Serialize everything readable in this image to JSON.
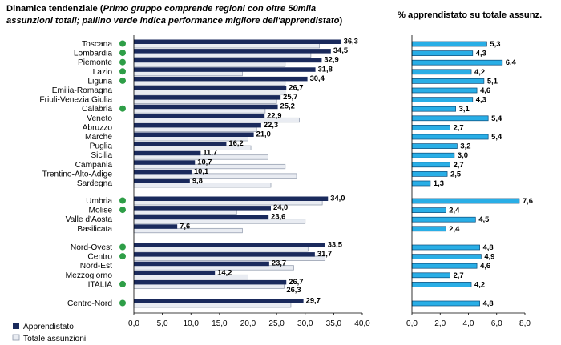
{
  "titles": {
    "left_line1_a": "Dinamica tendenziale (",
    "left_line1_b": "Primo gruppo comprende regioni con oltre 50mila",
    "left_line2_a": "assunzioni totali; pallino verde indica performance migliore dell'apprendistato",
    "left_line2_b": ")",
    "right": "% apprendistato su totale assunz."
  },
  "legend": {
    "apprendistato": "Apprendistato",
    "totale": "Totale assunzioni"
  },
  "colors": {
    "apprendistato": "#1a2a5c",
    "totale": "#e9ecf2",
    "totale_border": "#8c96a8",
    "pct": "#29aee6",
    "pct_border": "#0b4a78",
    "dot": "#2e9e47"
  },
  "chart_data": [
    {
      "type": "bar",
      "orientation": "horizontal",
      "categories": [
        "Toscana",
        "Lombardia",
        "Piemonte",
        "Lazio",
        "Liguria",
        "Emilia-Romagna",
        "Friuli-Venezia Giulia",
        "Calabria",
        "Veneto",
        "Abruzzo",
        "Marche",
        "Puglia",
        "Sicilia",
        "Campania",
        "Trentino-Alto-Adige",
        "Sardegna",
        "Umbria",
        "Molise",
        "Valle d'Aosta",
        "Basilicata",
        "Nord-Ovest",
        "Centro",
        "Nord-Est",
        "Mezzogiorno",
        "ITALIA",
        "Centro-Nord"
      ],
      "groups": [
        [
          0,
          15
        ],
        [
          16,
          19
        ],
        [
          20,
          24
        ],
        [
          25,
          25
        ]
      ],
      "series": [
        {
          "name": "Apprendistato",
          "values": [
            36.3,
            34.5,
            32.9,
            31.8,
            30.4,
            26.7,
            25.7,
            25.2,
            22.9,
            22.3,
            21.0,
            16.2,
            11.7,
            10.7,
            10.1,
            9.8,
            34.0,
            24.0,
            23.6,
            7.6,
            33.5,
            31.7,
            23.7,
            14.2,
            26.7,
            29.7
          ]
        },
        {
          "name": "Totale assunzioni",
          "values": [
            32.5,
            31.0,
            26.5,
            19.0,
            26.5,
            26.5,
            25.0,
            23.0,
            29.0,
            21.5,
            20.0,
            20.5,
            23.5,
            26.5,
            28.5,
            24.0,
            33.0,
            18.0,
            30.0,
            19.0,
            30.5,
            33.5,
            28.0,
            20.0,
            26.3,
            27.5
          ]
        }
      ],
      "value_labels": [
        "36,3",
        "34,5",
        "32,9",
        "31,8",
        "30,4",
        "26,7",
        "25,7",
        "25,2",
        "22,9",
        "22,3",
        "21,0",
        "16,2",
        "11,7",
        "10,7",
        "10,1",
        "9,8",
        "34,0",
        "24,0",
        "23,6",
        "7,6",
        "33,5",
        "31,7",
        "23,7",
        "14,2",
        "26,7",
        "29,7"
      ],
      "extra_labels": [
        {
          "category": "ITALIA",
          "text": "26,3"
        }
      ],
      "green_dot": [
        true,
        true,
        true,
        true,
        true,
        false,
        false,
        true,
        false,
        false,
        false,
        false,
        false,
        false,
        false,
        false,
        true,
        true,
        false,
        false,
        true,
        true,
        false,
        false,
        true,
        true
      ],
      "xlim": [
        0,
        40
      ],
      "xticks": [
        "0,0",
        "5,0",
        "10,0",
        "15,0",
        "20,0",
        "25,0",
        "30,0",
        "35,0",
        "40,0"
      ],
      "legend_position": "bottom-left"
    },
    {
      "type": "bar",
      "orientation": "horizontal",
      "title": "% apprendistato su totale assunz.",
      "categories": [
        "Toscana",
        "Lombardia",
        "Piemonte",
        "Lazio",
        "Liguria",
        "Emilia-Romagna",
        "Friuli-Venezia Giulia",
        "Calabria",
        "Veneto",
        "Abruzzo",
        "Marche",
        "Puglia",
        "Sicilia",
        "Campania",
        "Trentino-Alto-Adige",
        "Sardegna",
        "Umbria",
        "Molise",
        "Valle d'Aosta",
        "Basilicata",
        "Nord-Ovest",
        "Centro",
        "Nord-Est",
        "Mezzogiorno",
        "ITALIA",
        "Centro-Nord"
      ],
      "values": [
        5.3,
        4.3,
        6.4,
        4.2,
        5.1,
        4.6,
        4.3,
        3.1,
        5.4,
        2.7,
        5.4,
        3.2,
        3.0,
        2.7,
        2.5,
        1.3,
        7.6,
        2.4,
        4.5,
        2.4,
        4.8,
        4.9,
        4.6,
        2.7,
        4.2,
        4.8
      ],
      "value_labels": [
        "5,3",
        "4,3",
        "6,4",
        "4,2",
        "5,1",
        "4,6",
        "4,3",
        "3,1",
        "5,4",
        "2,7",
        "5,4",
        "3,2",
        "3,0",
        "2,7",
        "2,5",
        "1,3",
        "7,6",
        "2,4",
        "4,5",
        "2,4",
        "4,8",
        "4,9",
        "4,6",
        "2,7",
        "4,2",
        "4,8"
      ],
      "xlim": [
        0,
        8
      ],
      "xticks": [
        "0,0",
        "2,0",
        "4,0",
        "6,0",
        "8,0"
      ]
    }
  ]
}
